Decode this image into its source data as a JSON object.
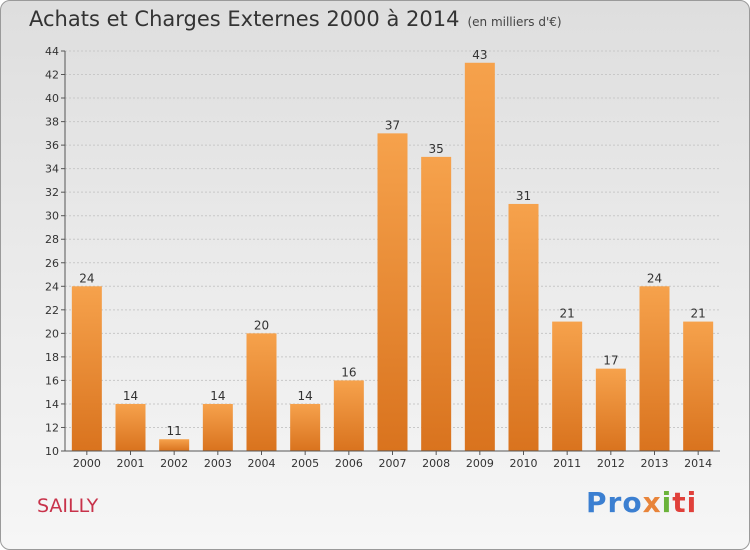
{
  "header": {
    "title": "Achats et Charges Externes 2000 à 2014",
    "unit": "(en milliers d'€)"
  },
  "commune": "SAILLY",
  "logo": {
    "parts": [
      "Pro",
      "x",
      "i",
      "ti"
    ]
  },
  "colors": {
    "bar_top": "#f6a24c",
    "bar_bottom": "#d9731e",
    "commune": "#c8324a"
  },
  "chart_data": {
    "type": "bar",
    "title": "Achats et Charges Externes 2000 à 2014",
    "subtitle": "(en milliers d'€)",
    "categories": [
      "2000",
      "2001",
      "2002",
      "2003",
      "2004",
      "2005",
      "2006",
      "2007",
      "2008",
      "2009",
      "2010",
      "2011",
      "2012",
      "2013",
      "2014"
    ],
    "values": [
      24,
      14,
      11,
      14,
      20,
      14,
      16,
      37,
      35,
      43,
      31,
      21,
      17,
      24,
      21
    ],
    "ylim": [
      10,
      44
    ],
    "yticks": [
      10,
      12,
      14,
      16,
      18,
      20,
      22,
      24,
      26,
      28,
      30,
      32,
      34,
      36,
      38,
      40,
      42,
      44
    ],
    "grid": true,
    "data_labels": true
  }
}
